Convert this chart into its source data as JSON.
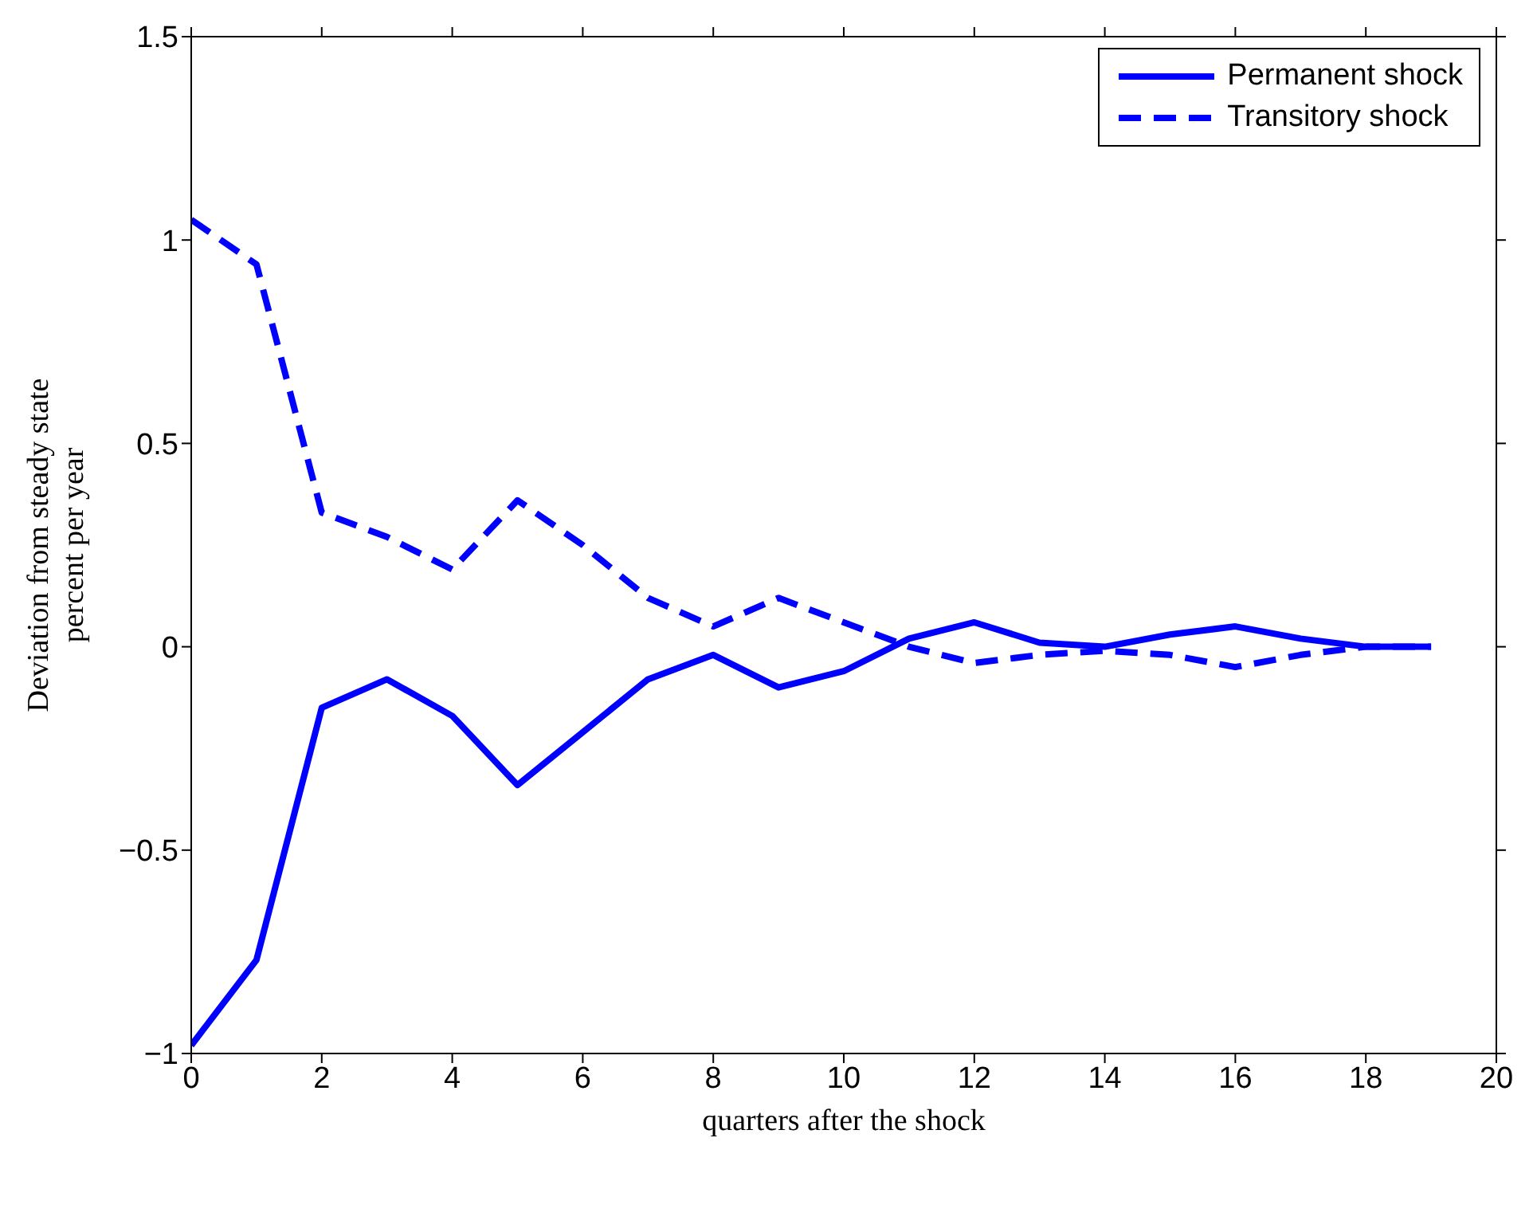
{
  "chart_data": {
    "type": "line",
    "xlabel": "quarters after the shock",
    "ylabel": "Deviation from steady state\npercent per year",
    "x": [
      0,
      1,
      2,
      3,
      4,
      5,
      6,
      7,
      8,
      9,
      10,
      11,
      12,
      13,
      14,
      15,
      16,
      17,
      18,
      19
    ],
    "series": [
      {
        "name": "Permanent shock",
        "color": "#0000ff",
        "line_style": "solid",
        "values": [
          -0.98,
          -0.77,
          -0.15,
          -0.08,
          -0.17,
          -0.34,
          -0.21,
          -0.08,
          -0.02,
          -0.1,
          -0.06,
          0.02,
          0.06,
          0.01,
          0,
          0.03,
          0.05,
          0.02,
          0,
          0
        ]
      },
      {
        "name": "Transitory shock",
        "color": "#0000ff",
        "line_style": "dashed",
        "values": [
          1.05,
          0.94,
          0.33,
          0.27,
          0.19,
          0.36,
          0.25,
          0.12,
          0.05,
          0.12,
          0.06,
          0,
          -0.04,
          -0.02,
          -0.01,
          -0.02,
          -0.05,
          -0.02,
          0,
          0
        ]
      }
    ],
    "xlim": [
      0,
      20
    ],
    "xticks": [
      0,
      2,
      4,
      6,
      8,
      10,
      12,
      14,
      16,
      18,
      20
    ],
    "ylim": [
      -1,
      1.5
    ],
    "yticks": [
      -1,
      -0.5,
      0,
      0.5,
      1,
      1.5
    ],
    "grid": false,
    "legend": "top right",
    "marker": "none"
  }
}
